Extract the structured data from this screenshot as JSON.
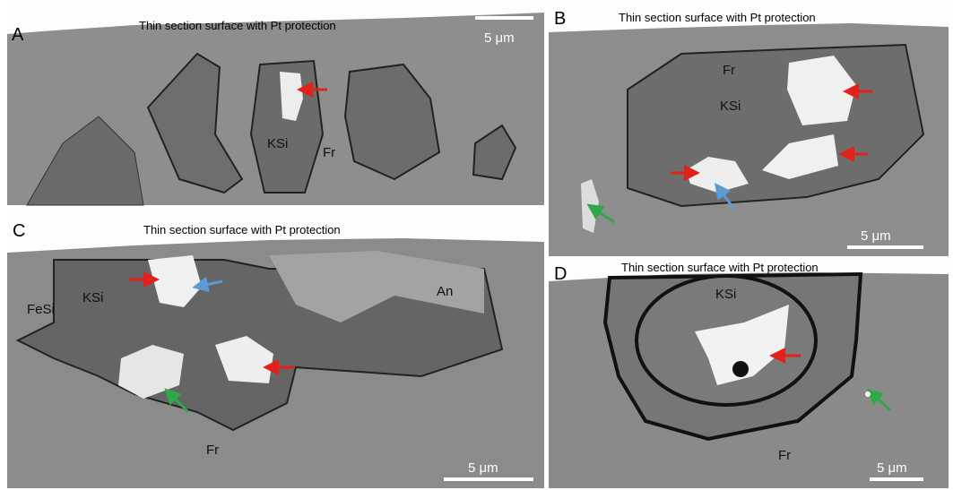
{
  "panels": [
    {
      "letter": "A",
      "caption": "Thin section surface with Pt protection",
      "scale_bar": "5 μm",
      "labels": [
        "KSi",
        "Fr"
      ]
    },
    {
      "letter": "B",
      "caption": "Thin section surface with Pt protection",
      "scale_bar": "5 μm",
      "labels": [
        "Fr",
        "KSi"
      ]
    },
    {
      "letter": "C",
      "caption": "Thin section surface with Pt protection",
      "scale_bar": "5 μm",
      "labels": [
        "FeSi",
        "KSi",
        "An",
        "Fr"
      ]
    },
    {
      "letter": "D",
      "caption": "Thin section surface with Pt protection",
      "scale_bar": "5 μm",
      "labels": [
        "KSi",
        "Fr"
      ]
    }
  ]
}
